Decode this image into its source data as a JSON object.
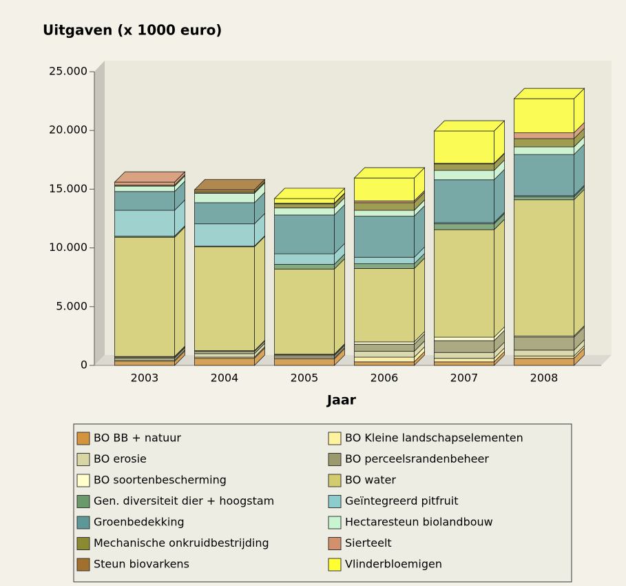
{
  "chart_data": {
    "type": "bar",
    "stacked": true,
    "title": "Uitgaven (x 1000 euro)",
    "xlabel": "Jaar",
    "categories": [
      "2003",
      "2004",
      "2005",
      "2006",
      "2007",
      "2008"
    ],
    "ylim": [
      0,
      25000
    ],
    "yticks": [
      0,
      {
        "value": 5000,
        "label": "5.000"
      },
      {
        "value": 10000,
        "label": "10.000"
      },
      {
        "value": 15000,
        "label": "15.000"
      },
      {
        "value": 20000,
        "label": "20.000"
      },
      {
        "value": 25000,
        "label": "25.000"
      }
    ],
    "series": [
      {
        "name": "BO BB + natuur",
        "color": "#d4943c",
        "values": [
          350,
          600,
          550,
          300,
          300,
          600
        ]
      },
      {
        "name": "BO Kleine landschapselementen",
        "color": "#fff3a0",
        "values": [
          100,
          100,
          100,
          400,
          300,
          200
        ]
      },
      {
        "name": "BO erosie",
        "color": "#d8d6a4",
        "values": [
          150,
          300,
          150,
          500,
          500,
          500
        ]
      },
      {
        "name": "BO perceelsrandenbeheer",
        "color": "#9c9a6c",
        "values": [
          100,
          200,
          100,
          600,
          1000,
          1100
        ]
      },
      {
        "name": "BO soortenbescherming",
        "color": "#ffffcc",
        "values": [
          50,
          50,
          50,
          200,
          300,
          100
        ]
      },
      {
        "name": "BO water",
        "color": "#d2cc6c",
        "values": [
          10150,
          8850,
          7250,
          6250,
          9150,
          11600
        ]
      },
      {
        "name": "Gen. diversiteit dier + hoogstam",
        "color": "#6a9a6c",
        "values": [
          100,
          50,
          400,
          400,
          500,
          250
        ]
      },
      {
        "name": "Geïntegreerd pitfruit",
        "color": "#8ccccc",
        "values": [
          2200,
          1900,
          900,
          550,
          100,
          100
        ]
      },
      {
        "name": "Groenbedekking",
        "color": "#5c9898",
        "values": [
          1600,
          1800,
          3300,
          3500,
          3650,
          3500
        ]
      },
      {
        "name": "Hectaresteun biolandbouw",
        "color": "#c8f4d0",
        "values": [
          450,
          800,
          600,
          500,
          800,
          650
        ]
      },
      {
        "name": "Mechanische onkruidbestrijding",
        "color": "#8c8a30",
        "values": [
          100,
          100,
          350,
          650,
          550,
          700
        ]
      },
      {
        "name": "Sierteelt",
        "color": "#d4906c",
        "values": [
          250,
          0,
          50,
          150,
          50,
          500
        ]
      },
      {
        "name": "Steun biovarkens",
        "color": "#a0702c",
        "values": [
          0,
          200,
          0,
          0,
          0,
          0
        ]
      },
      {
        "name": "Vlinderbloemigen",
        "color": "#ffff33",
        "values": [
          0,
          0,
          400,
          1950,
          2750,
          2900
        ]
      }
    ]
  }
}
